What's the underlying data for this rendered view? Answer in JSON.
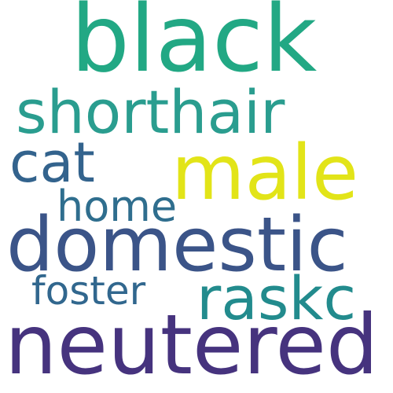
{
  "word_cloud": {
    "words": {
      "black": {
        "text": "black",
        "color": "#22a884"
      },
      "shorthair": {
        "text": "shorthair",
        "color": "#2a9d8f"
      },
      "male": {
        "text": "male",
        "color": "#e2e418"
      },
      "cat": {
        "text": "cat",
        "color": "#33638d"
      },
      "home": {
        "text": "home",
        "color": "#2f6e8e"
      },
      "domestic": {
        "text": "domestic",
        "color": "#3b5488"
      },
      "foster": {
        "text": "foster",
        "color": "#31678e"
      },
      "raskc": {
        "text": "raskc",
        "color": "#228b8d"
      },
      "neutered": {
        "text": "neutered",
        "color": "#46337e"
      }
    }
  }
}
